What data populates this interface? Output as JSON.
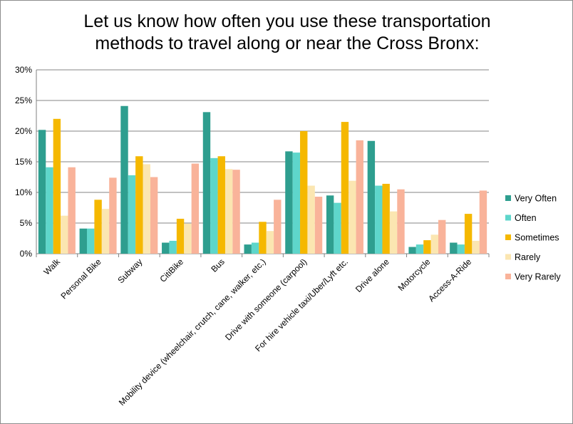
{
  "chart_data": {
    "type": "bar",
    "title_line1": "Let us know how often you use these transportation",
    "title_line2": "methods to travel along or near the Cross Bronx:",
    "xlabel": "",
    "ylabel": "",
    "ylim": [
      0,
      30
    ],
    "y_tick_labels": [
      "0%",
      "5%",
      "10%",
      "15%",
      "20%",
      "25%",
      "30%"
    ],
    "y_tick_values": [
      0,
      5,
      10,
      15,
      20,
      25,
      30
    ],
    "grid": true,
    "legend_position": "right",
    "categories": [
      "Walk",
      "Personal Bike",
      "Subway",
      "CitiBike",
      "Bus",
      "Mobility device (wheelchair, crutch, cane, walker, etc.)",
      "Drive with someone (carpool)",
      "For hire vehicle taxi/Uber/Lyft etc.",
      "Drive alone",
      "Motorcycle",
      "Access-A-Ride"
    ],
    "series": [
      {
        "name": "Very Often",
        "color": "#2e9e8f",
        "values": [
          20.2,
          4.1,
          24.1,
          1.8,
          23.1,
          1.5,
          16.7,
          9.5,
          18.4,
          1.1,
          1.8
        ]
      },
      {
        "name": "Often",
        "color": "#5ed6cb",
        "values": [
          14.1,
          4.1,
          12.8,
          2.1,
          15.6,
          1.8,
          16.5,
          8.3,
          11.1,
          1.5,
          1.5
        ]
      },
      {
        "name": "Sometimes",
        "color": "#f5b800",
        "values": [
          22.0,
          8.8,
          15.9,
          5.7,
          15.9,
          5.2,
          20.0,
          21.5,
          11.4,
          2.2,
          6.5
        ]
      },
      {
        "name": "Rarely",
        "color": "#fbe6b1",
        "values": [
          6.2,
          7.3,
          14.6,
          4.9,
          13.8,
          3.7,
          11.1,
          11.9,
          6.9,
          3.1,
          2.1
        ]
      },
      {
        "name": "Very Rarely",
        "color": "#f9b39a",
        "values": [
          14.1,
          12.4,
          12.5,
          14.7,
          13.7,
          8.8,
          9.3,
          18.5,
          10.5,
          5.5,
          10.3
        ]
      }
    ]
  }
}
